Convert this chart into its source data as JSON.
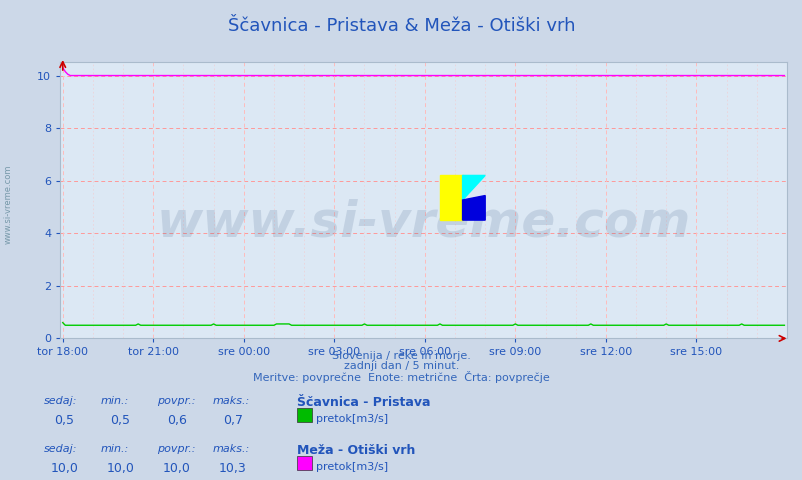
{
  "title": "Ščavnica - Pristava & Meža - Otiški vrh",
  "subtitle1": "Slovenija / reke in morje.",
  "subtitle2": "zadnji dan / 5 minut.",
  "subtitle3": "Meritve: povprečne  Enote: metrične  Črta: povprečje",
  "bg_color": "#ccd8e8",
  "plot_bg_color": "#dce8f4",
  "title_color": "#2255bb",
  "subtitle_color": "#3366bb",
  "grid_color_h": "#ff9999",
  "grid_color_v": "#ffbbbb",
  "ymin": 0,
  "ymax": 10.5,
  "yticks": [
    0,
    2,
    4,
    6,
    8,
    10
  ],
  "n_points": 288,
  "line1_color": "#00cc00",
  "line2_color": "#ff00ff",
  "x_tick_labels": [
    "tor 18:00",
    "tor 21:00",
    "sre 00:00",
    "sre 03:00",
    "sre 06:00",
    "sre 09:00",
    "sre 12:00",
    "sre 15:00"
  ],
  "x_tick_positions": [
    0,
    36,
    72,
    108,
    144,
    180,
    216,
    252
  ],
  "arrow_color": "#cc0000",
  "left_label": "www.si-vreme.com",
  "left_label_color": "#7799aa",
  "watermark_text": "www.si-vreme.com",
  "watermark_color": "#1a3a6a",
  "watermark_alpha": 0.13,
  "legend1_title": "Ščavnica - Pristava",
  "legend1_label": "pretok[m3/s]",
  "legend1_color": "#00bb00",
  "legend2_title": "Meža - Otiški vrh",
  "legend2_label": "pretok[m3/s]",
  "legend2_color": "#ff00ff",
  "stats1_sedaj": "0,5",
  "stats1_min": "0,5",
  "stats1_povpr": "0,6",
  "stats1_maks": "0,7",
  "stats2_sedaj": "10,0",
  "stats2_min": "10,0",
  "stats2_povpr": "10,0",
  "stats2_maks": "10,3",
  "text_color": "#2255bb",
  "tick_fontsize": 8,
  "stat_label_fontsize": 8,
  "stat_value_fontsize": 9,
  "legend_title_fontsize": 9,
  "legend_label_fontsize": 8,
  "title_fontsize": 13
}
